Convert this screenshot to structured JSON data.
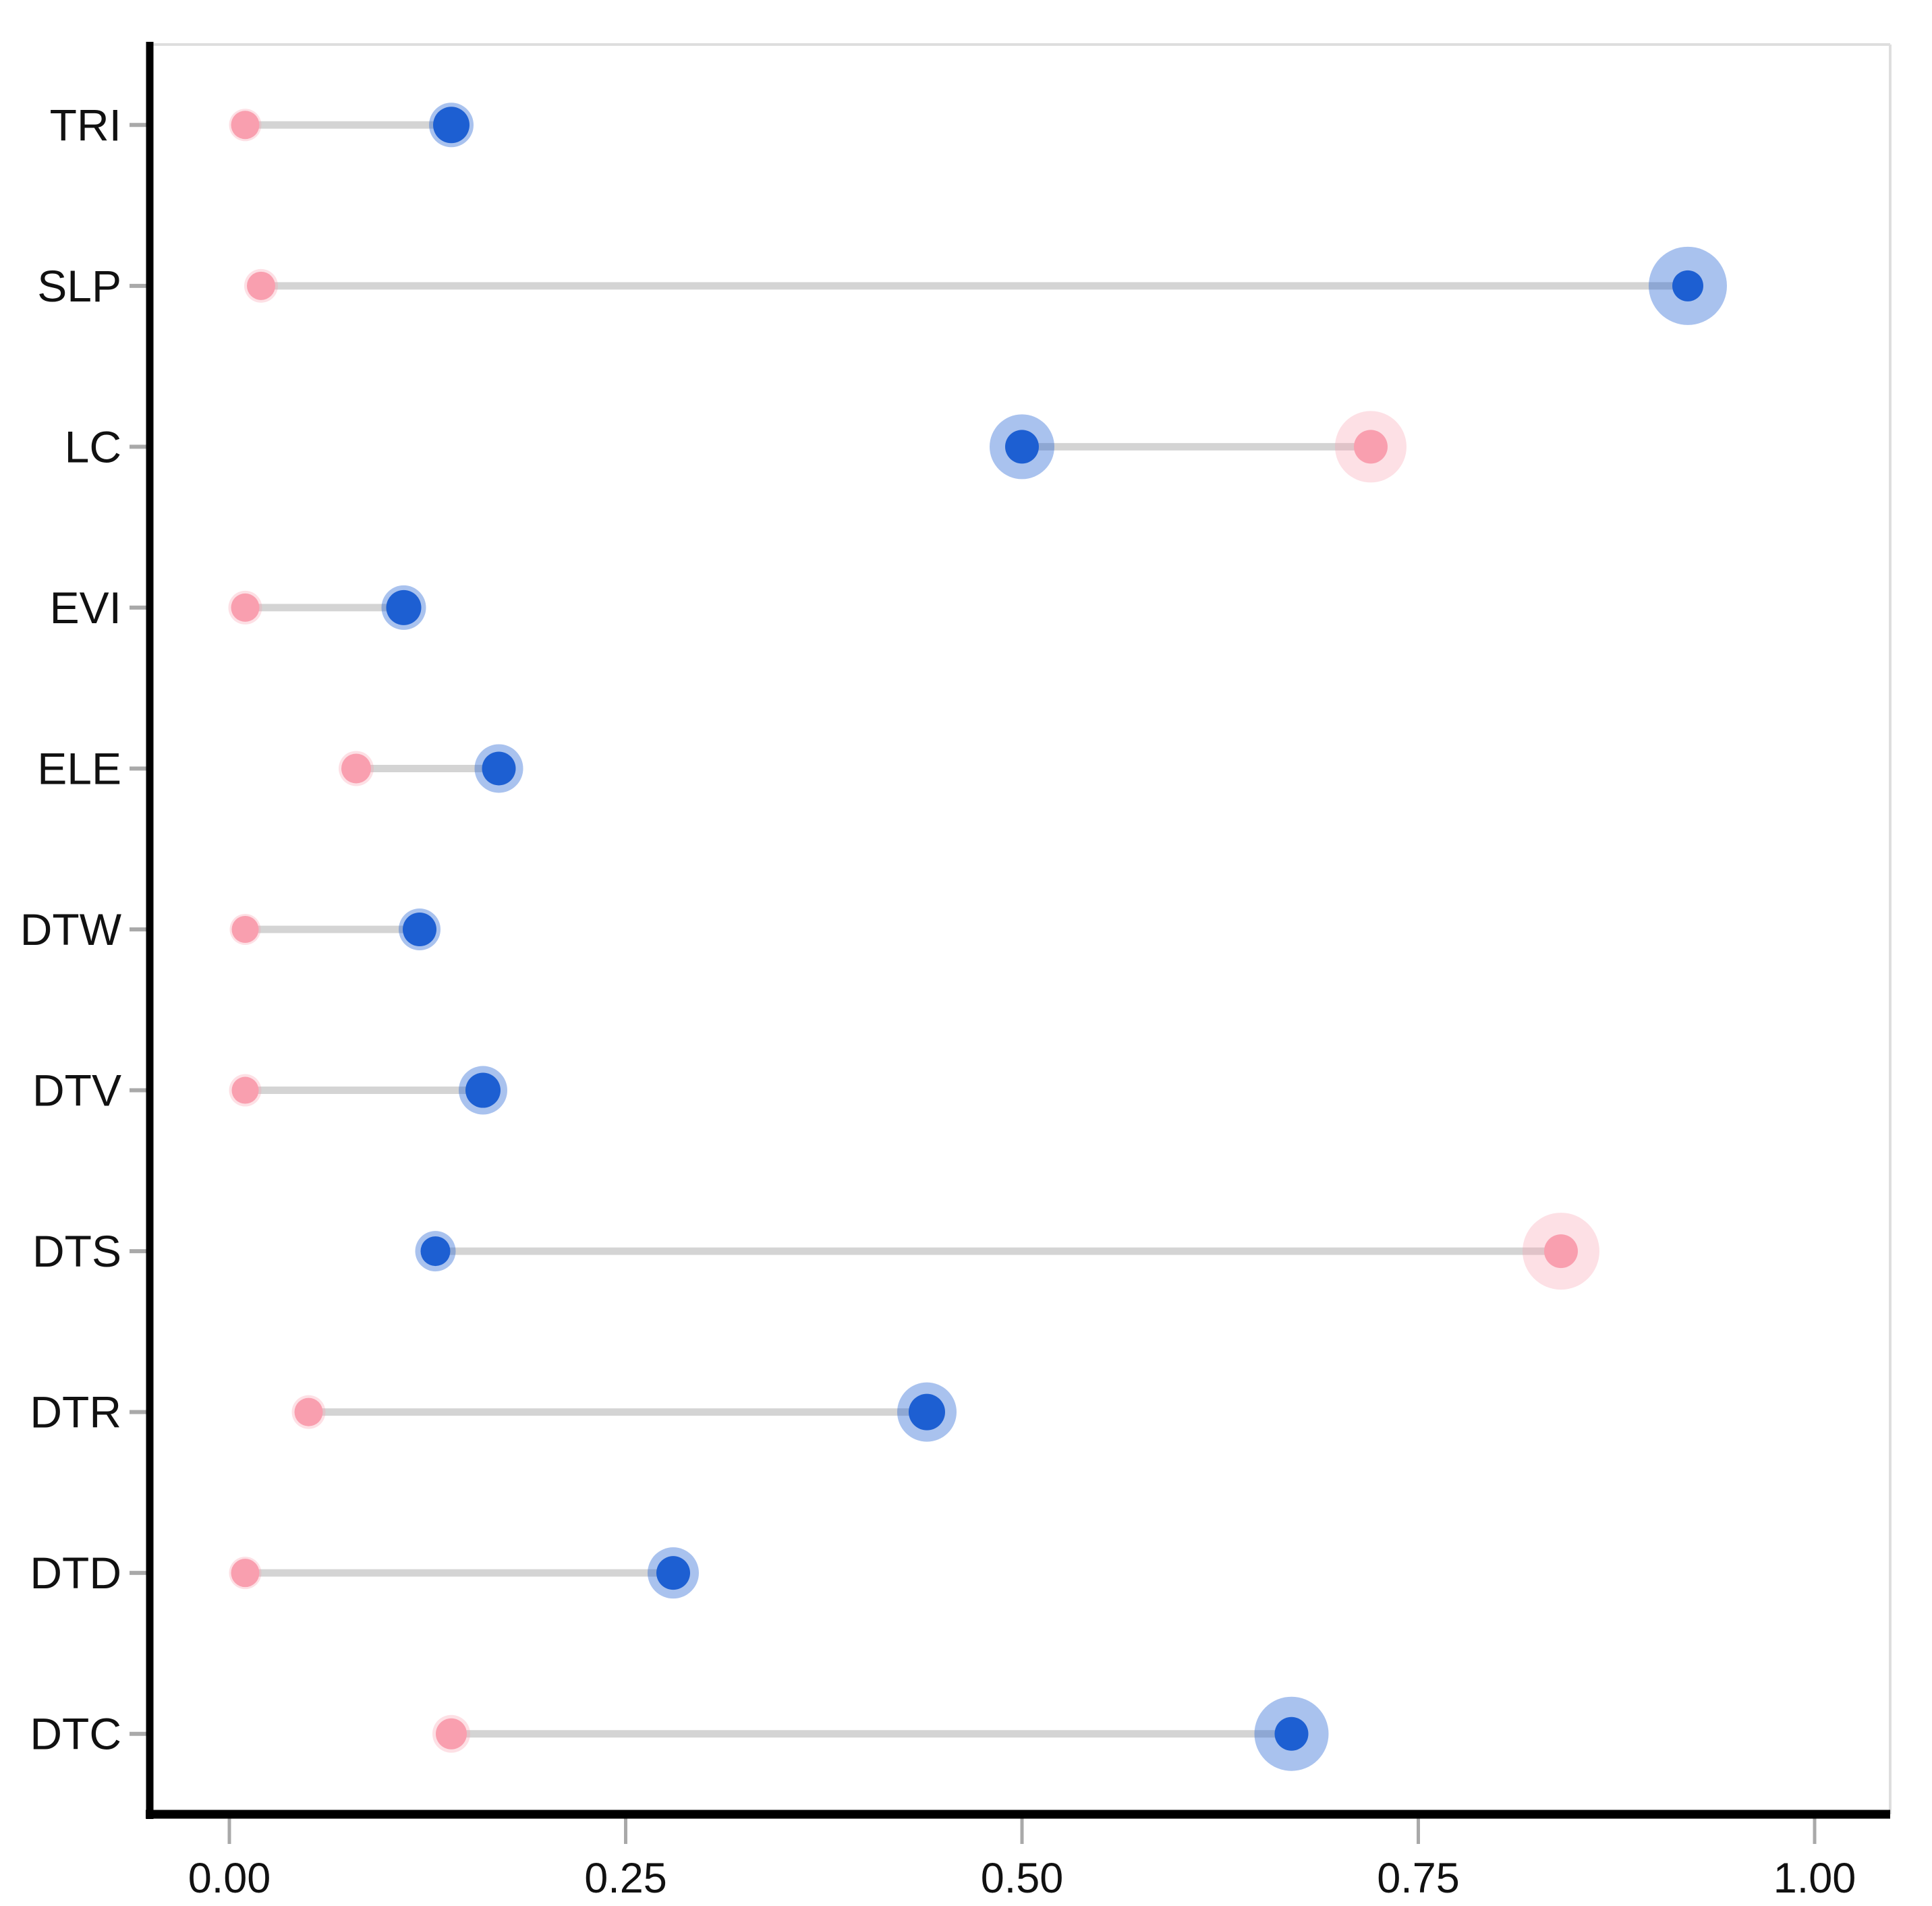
{
  "chart_data": {
    "type": "dumbbell",
    "title": "",
    "xlabel": "",
    "ylabel": "",
    "categories": [
      "TRI",
      "SLP",
      "LC",
      "EVI",
      "ELE",
      "DTW",
      "DTV",
      "DTS",
      "DTR",
      "DTD",
      "DTC"
    ],
    "series": [
      {
        "name": "pink",
        "color": "#F99FAF",
        "halo_opacity": 0.32,
        "values": [
          0.01,
          0.02,
          0.72,
          0.01,
          0.08,
          0.01,
          0.01,
          0.84,
          0.05,
          0.01,
          0.14
        ],
        "core_radius": [
          21,
          21,
          25,
          21,
          22,
          20,
          20,
          25,
          21,
          21,
          23
        ],
        "halo_radius": [
          24,
          25,
          53,
          25,
          26,
          23,
          24,
          57,
          25,
          24,
          28
        ]
      },
      {
        "name": "blue",
        "color": "#1D5FD2",
        "halo_opacity": 0.38,
        "values": [
          0.14,
          0.92,
          0.5,
          0.11,
          0.17,
          0.12,
          0.16,
          0.13,
          0.44,
          0.28,
          0.67
        ],
        "core_radius": [
          27,
          23,
          25,
          26,
          25,
          25,
          26,
          22,
          27,
          25,
          25
        ],
        "halo_radius": [
          33,
          58,
          48,
          33,
          36,
          31,
          36,
          30,
          44,
          38,
          55
        ]
      }
    ],
    "x_ticks": [
      "0.00",
      "0.25",
      "0.50",
      "0.75",
      "1.00"
    ],
    "x_tick_values": [
      0,
      0.25,
      0.5,
      0.75,
      1
    ],
    "xlim": [
      -0.05,
      1.05
    ],
    "grid": "off",
    "legend": "none",
    "connector_color": "#D4D4D4",
    "axis_color": "#000000",
    "panel_border_color": "#DEDEDE",
    "tick_mark_color": "#A9A9A9",
    "label_color": "#111111"
  }
}
